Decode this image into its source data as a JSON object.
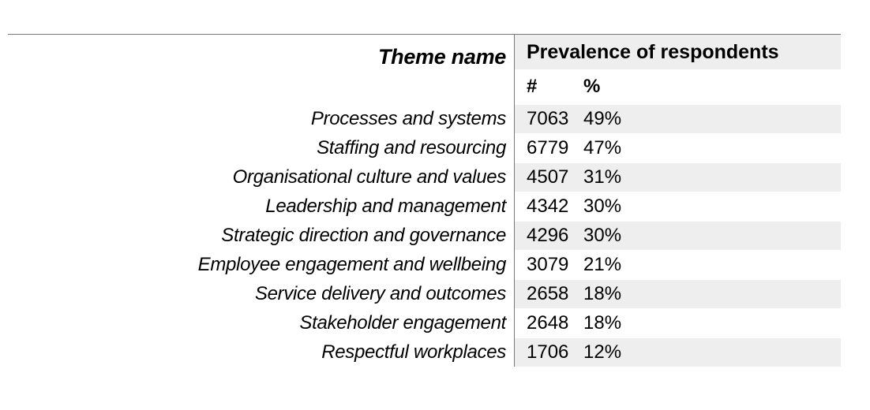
{
  "table": {
    "theme_header": "Theme name",
    "prevalence_header": "Prevalence of respondents",
    "count_header": "#",
    "percent_header": "%",
    "rows": [
      {
        "theme": "Processes and systems",
        "count": "7063",
        "percent": "49%"
      },
      {
        "theme": "Staffing and resourcing",
        "count": "6779",
        "percent": "47%"
      },
      {
        "theme": "Organisational culture and values",
        "count": "4507",
        "percent": "31%"
      },
      {
        "theme": "Leadership and management",
        "count": "4342",
        "percent": "30%"
      },
      {
        "theme": "Strategic direction and governance",
        "count": "4296",
        "percent": "30%"
      },
      {
        "theme": "Employee engagement and wellbeing",
        "count": "3079",
        "percent": "21%"
      },
      {
        "theme": "Service delivery and outcomes",
        "count": "2658",
        "percent": "18%"
      },
      {
        "theme": "Stakeholder engagement",
        "count": "2648",
        "percent": "18%"
      },
      {
        "theme": "Respectful workplaces",
        "count": "1706",
        "percent": "12%"
      }
    ]
  },
  "colors": {
    "shaded_row": "#eeeeee",
    "rule": "#777777"
  }
}
